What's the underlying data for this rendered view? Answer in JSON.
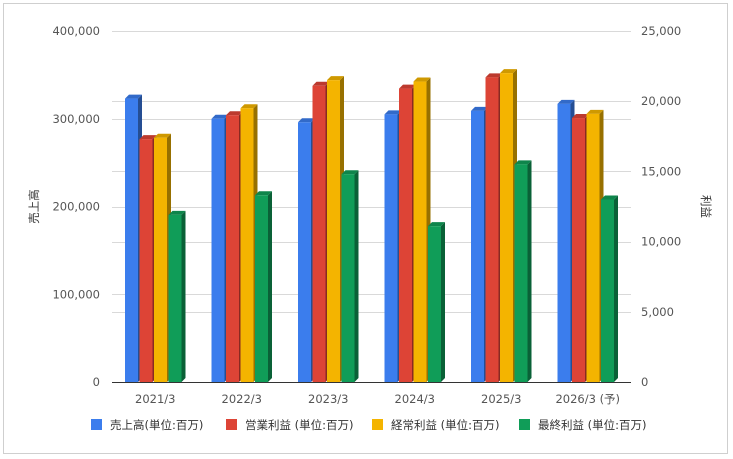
{
  "chart_data": {
    "type": "bar",
    "categories": [
      "2021/3",
      "2022/3",
      "2023/3",
      "2024/3",
      "2025/3",
      "2026/3 (予)"
    ],
    "left_axis": {
      "label": "売上高",
      "range": [
        0,
        400000
      ],
      "ticks": [
        "0",
        "100,000",
        "200,000",
        "300,000",
        "400,000"
      ]
    },
    "right_axis": {
      "label": "利益",
      "range": [
        0,
        25000
      ],
      "ticks": [
        "0",
        "5,000",
        "10,000",
        "15,000",
        "20,000",
        "25,000"
      ]
    },
    "series": [
      {
        "name": "売上高(単位:百万)",
        "axis": "left",
        "color": "#3b7ded",
        "values": [
          323000,
          300000,
          296000,
          305000,
          309000,
          317000
        ]
      },
      {
        "name": "営業利益 (単位:百万)",
        "axis": "right",
        "color": "#dd4436",
        "values": [
          17300,
          19000,
          21100,
          20900,
          21700,
          18800
        ]
      },
      {
        "name": "経常利益 (単位:百万)",
        "axis": "right",
        "color": "#f4b400",
        "values": [
          17400,
          19500,
          21500,
          21400,
          22000,
          19100
        ]
      },
      {
        "name": "最終利益 (単位:百万)",
        "axis": "right",
        "color": "#109d58",
        "values": [
          11900,
          13300,
          14800,
          11100,
          15500,
          13000
        ]
      }
    ],
    "grid": true,
    "legend_position": "bottom"
  }
}
